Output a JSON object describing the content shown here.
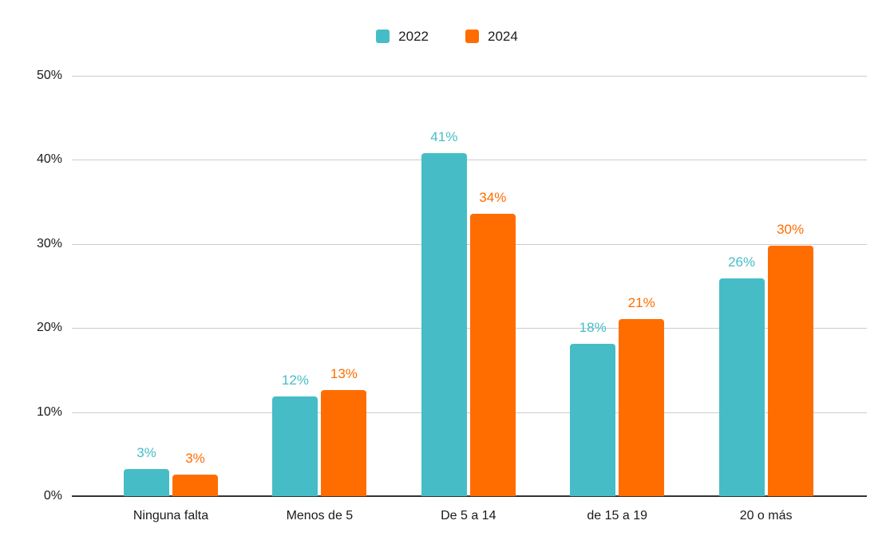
{
  "chart_data": {
    "type": "bar",
    "title": "",
    "xlabel": "",
    "ylabel": "",
    "categories": [
      "Ninguna falta",
      "Menos de 5",
      "De 5 a 14",
      "de 15 a 19",
      "20 o más"
    ],
    "series": [
      {
        "name": "2022",
        "color": "#46BDC6",
        "values": [
          3.2,
          11.9,
          40.8,
          18.1,
          25.9
        ],
        "labels": [
          "3%",
          "12%",
          "41%",
          "18%",
          "26%"
        ]
      },
      {
        "name": "2024",
        "color": "#FF6D01",
        "values": [
          2.6,
          12.6,
          33.6,
          21.1,
          29.8
        ],
        "labels": [
          "3%",
          "13%",
          "34%",
          "21%",
          "30%"
        ]
      }
    ],
    "ylim": [
      0,
      50
    ],
    "yticks": [
      {
        "value": 0,
        "label": "0%"
      },
      {
        "value": 10,
        "label": "10%"
      },
      {
        "value": 20,
        "label": "20%"
      },
      {
        "value": 30,
        "label": "30%"
      },
      {
        "value": 40,
        "label": "40%"
      },
      {
        "value": 50,
        "label": "50%"
      }
    ],
    "grid": true,
    "legend_position": "top-center"
  },
  "colors": {
    "background": "#ffffff",
    "gridline": "#cccccc",
    "axis_line": "#333333",
    "text": "#1b1b1b"
  }
}
